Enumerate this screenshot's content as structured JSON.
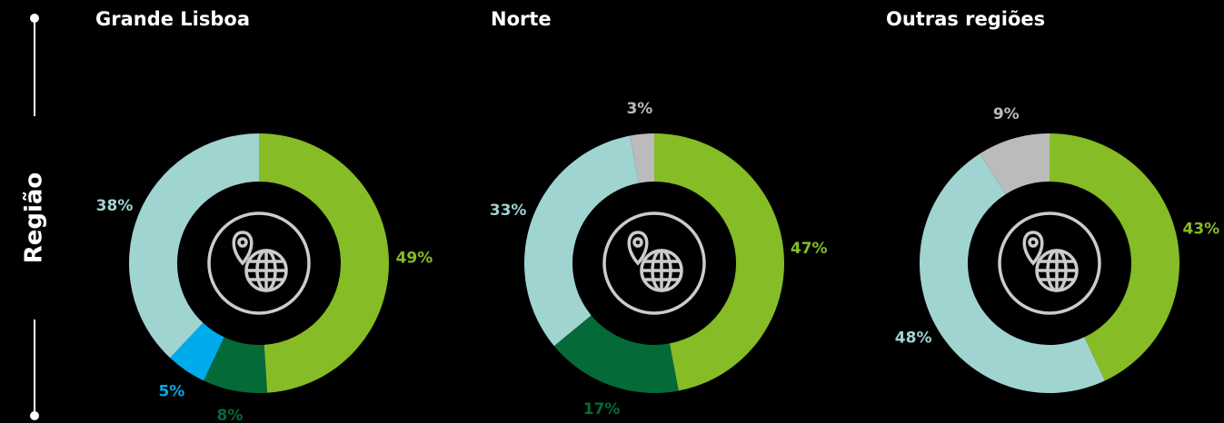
{
  "side_label": "Região",
  "chart_data": [
    {
      "type": "pie",
      "title": "Grande Lisboa",
      "values": [
        49,
        8,
        5,
        38
      ],
      "value_labels": [
        "49%",
        "8%",
        "5%",
        "38%"
      ],
      "colors": [
        "#86bc25",
        "#046a38",
        "#00abeb",
        "#9fd4d1"
      ]
    },
    {
      "type": "pie",
      "title": "Norte",
      "values": [
        47,
        17,
        33,
        3
      ],
      "value_labels": [
        "47%",
        "17%",
        "33%",
        "3%"
      ],
      "colors": [
        "#86bc25",
        "#046a38",
        "#9fd4d1",
        "#bbbbbb"
      ]
    },
    {
      "type": "pie",
      "title": "Outras regiões",
      "values": [
        43,
        48,
        9
      ],
      "value_labels": [
        "43%",
        "48%",
        "9%"
      ],
      "colors": [
        "#86bc25",
        "#9fd4d1",
        "#bbbbbb"
      ]
    }
  ]
}
